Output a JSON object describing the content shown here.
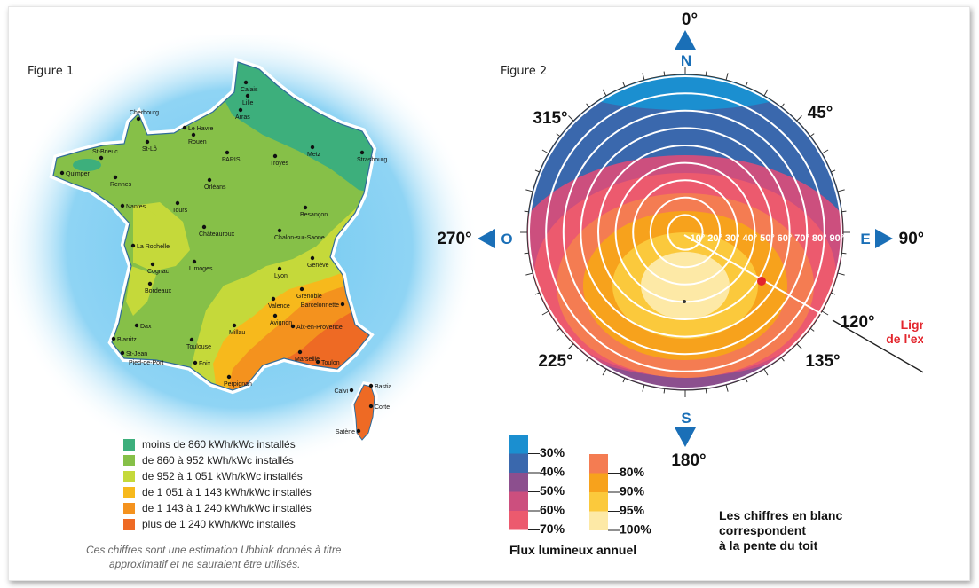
{
  "figure1": {
    "label": "Figure 1",
    "cities": [
      {
        "name": "Calais"
      },
      {
        "name": "Lille"
      },
      {
        "name": "Arras"
      },
      {
        "name": "Cherbourg"
      },
      {
        "name": "Le Havre"
      },
      {
        "name": "Rouen"
      },
      {
        "name": "St-Brieuc"
      },
      {
        "name": "St-Lô"
      },
      {
        "name": "Quimper"
      },
      {
        "name": "Rennes"
      },
      {
        "name": "PARIS"
      },
      {
        "name": "Troyes"
      },
      {
        "name": "Metz"
      },
      {
        "name": "Strasbourg"
      },
      {
        "name": "Orléans"
      },
      {
        "name": "Nantes"
      },
      {
        "name": "Tours"
      },
      {
        "name": "Besançon"
      },
      {
        "name": "Châteauroux"
      },
      {
        "name": "Chalon-sur-Saone"
      },
      {
        "name": "La Rochelle"
      },
      {
        "name": "Cognac"
      },
      {
        "name": "Limoges"
      },
      {
        "name": "Genève"
      },
      {
        "name": "Lyon"
      },
      {
        "name": "Bordeaux"
      },
      {
        "name": "Grenoble"
      },
      {
        "name": "Valence"
      },
      {
        "name": "Barcelonnette"
      },
      {
        "name": "Dax"
      },
      {
        "name": "Avignon"
      },
      {
        "name": "Millau"
      },
      {
        "name": "Aix-en-Provence"
      },
      {
        "name": "Biarritz"
      },
      {
        "name": "Toulouse"
      },
      {
        "name": "St-Jean"
      },
      {
        "name": "Pied-de-Port"
      },
      {
        "name": "Marseille"
      },
      {
        "name": "Foix"
      },
      {
        "name": "Toulon"
      },
      {
        "name": "Perpignan"
      },
      {
        "name": "Bastia"
      },
      {
        "name": "Calvi"
      },
      {
        "name": "Corte"
      },
      {
        "name": "Satène"
      }
    ],
    "legend": [
      {
        "label": "moins de 860 kWh/kWc installés",
        "color": "#3daf7c"
      },
      {
        "label": "de 860 à 952 kWh/kWc installés",
        "color": "#86c048"
      },
      {
        "label": "de 952 à 1 051 kWh/kWc installés",
        "color": "#c5d93a"
      },
      {
        "label": "de 1 051 à 1 143 kWh/kWc installés",
        "color": "#f7b91c"
      },
      {
        "label": "de 1 143 à 1 240 kWh/kWc installés",
        "color": "#f4921e"
      },
      {
        "label": "plus de 1 240 kWh/kWc installés",
        "color": "#ee6a24"
      }
    ],
    "note_line1": "Ces chiffres sont une estimation Ubbink donnés à titre",
    "note_line2": "approximatif et ne sauraient être utilisés."
  },
  "figure2": {
    "label": "Figure 2",
    "compass": {
      "n_deg": "0°",
      "n": "N",
      "e_deg": "90°",
      "e": "E",
      "s_deg": "180°",
      "s": "S",
      "o_deg": "270°",
      "o": "O",
      "d45": "45°",
      "d135": "135°",
      "d225": "225°",
      "d315": "315°",
      "d120": "120°"
    },
    "slopes": [
      "10°",
      "20°",
      "30°",
      "40°",
      "50°",
      "60°",
      "70°",
      "80°",
      "90°"
    ],
    "line_a_1": "Ligne A",
    "line_a_2": "de l'exemple",
    "flux_title": "Flux lumineux annuel",
    "flux_cool": [
      {
        "label": "30%",
        "color": "#1b8fd0"
      },
      {
        "label": "40%",
        "color": "#3a68ad"
      },
      {
        "label": "50%",
        "color": "#8c4f8e"
      },
      {
        "label": "60%",
        "color": "#cc4f7e"
      },
      {
        "label": "70%",
        "color": "#ec5a6e"
      }
    ],
    "flux_warm": [
      {
        "label": "80%",
        "color": "#f47c52"
      },
      {
        "label": "90%",
        "color": "#f7a21c"
      },
      {
        "label": "95%",
        "color": "#fbc93c"
      },
      {
        "label": "100%",
        "color": "#fde9a6"
      }
    ],
    "caption_1": "Les chiffres en blanc",
    "caption_2": "correspondent",
    "caption_3": "à la pente du toit",
    "accent_blue": "#1a6fb7",
    "accent_red": "#e3262d"
  }
}
